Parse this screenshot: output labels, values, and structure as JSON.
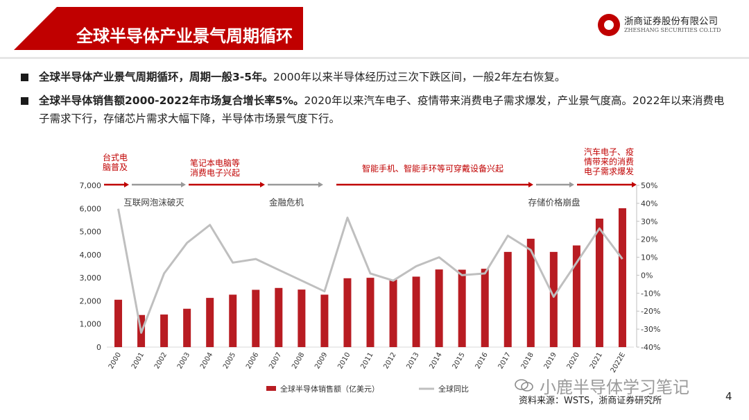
{
  "header": {
    "title": "全球半导体产业景气周期循环",
    "logo_cn": "浙商证券股份有限公司",
    "logo_en": "ZHESHANG SECURITIES CO.LTD"
  },
  "bullets": [
    {
      "bold": "全球半导体产业景气周期循环，周期一般3-5年。",
      "text": "2000年以来半导体经历过三次下跌区间，一般2年左右恢复。"
    },
    {
      "bold": "全球半导体销售额2000-2022年市场复合增长率5%。",
      "text": "2020年以来汽车电子、疫情带来消费电子需求爆发，产业景气度高。2022年以来消费电子需求下行，存储芯片需求大幅下降，半导体市场景气度下行。"
    }
  ],
  "chart_data": {
    "type": "bar",
    "categories": [
      "2000",
      "2001",
      "2002",
      "2003",
      "2004",
      "2005",
      "2006",
      "2007",
      "2008",
      "2009",
      "2010",
      "2011",
      "2012",
      "2013",
      "2014",
      "2015",
      "2016",
      "2017",
      "2018",
      "2019",
      "2020",
      "2021",
      "2022E"
    ],
    "series": [
      {
        "name": "全球半导体销售额（亿美元）",
        "type": "bar",
        "axis": "left",
        "color": "#b81c22",
        "values": [
          2050,
          1390,
          1410,
          1660,
          2130,
          2270,
          2480,
          2560,
          2490,
          2270,
          2980,
          3000,
          2920,
          3050,
          3360,
          3350,
          3390,
          4120,
          4690,
          4120,
          4400,
          5560,
          6010
        ]
      },
      {
        "name": "全球同比",
        "type": "line",
        "axis": "right",
        "color": "#bfbfbf",
        "values": [
          37,
          -32,
          1,
          18,
          28,
          7,
          9,
          3,
          -3,
          -9,
          32,
          1,
          -3,
          5,
          10,
          0,
          1,
          22,
          14,
          -12,
          7,
          26,
          9
        ]
      }
    ],
    "y_left": {
      "ylim": [
        0,
        7000
      ],
      "ticks": [
        "0",
        "1,000",
        "2,000",
        "3,000",
        "4,000",
        "5,000",
        "6,000",
        "7,000"
      ]
    },
    "y_right": {
      "ylim": [
        -40,
        50
      ],
      "ticks": [
        "-40%",
        "-30%",
        "-20%",
        "-10%",
        "0%",
        "10%",
        "20%",
        "30%",
        "40%",
        "50%"
      ]
    },
    "legend_position": "bottom",
    "phase_labels": [
      {
        "text": "台式电脑普及",
        "lines": [
          "台式电",
          "脑普及"
        ],
        "color": "#c00000"
      },
      {
        "text": "笔记本电脑等消费电子兴起",
        "lines": [
          "笔记本电脑等",
          "消费电子兴起"
        ],
        "color": "#c00000"
      },
      {
        "text": "智能手机、智能手环等可穿戴设备兴起",
        "lines": [
          "智能手机、智能手环等可穿戴设备兴起"
        ],
        "color": "#c00000"
      },
      {
        "text": "汽车电子、疫情带来的消费电子需求爆发",
        "lines": [
          "汽车电子、疫",
          "情带来的消费",
          "电子需求爆发"
        ],
        "color": "#c00000"
      }
    ],
    "event_labels": [
      "互联网泡沫破灭",
      "金融危机",
      "存储价格崩盘"
    ],
    "source": "资料来源：WSTS，浙商证券研究所"
  },
  "footer": {
    "watermark": "小鹿半导体学习笔记",
    "page": "4"
  }
}
